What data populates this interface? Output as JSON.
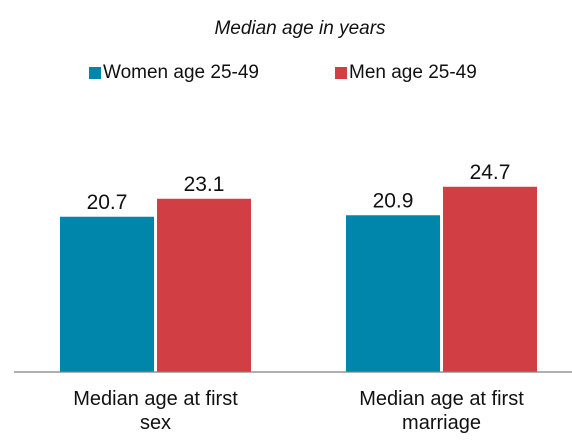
{
  "chart_data": {
    "type": "bar",
    "subtitle": "Median age in years",
    "categories": [
      [
        "Median age at first",
        "sex"
      ],
      [
        "Median age at first",
        "marriage"
      ]
    ],
    "series": [
      {
        "name": "Women age 25-49",
        "values": [
          20.7,
          20.9
        ]
      },
      {
        "name": "Men age 25-49",
        "values": [
          23.1,
          24.7
        ]
      }
    ],
    "ylim": [
      0,
      40
    ],
    "legend_position": "top",
    "grid": false,
    "colors": [
      "#0085AB",
      "#D13F45"
    ]
  }
}
